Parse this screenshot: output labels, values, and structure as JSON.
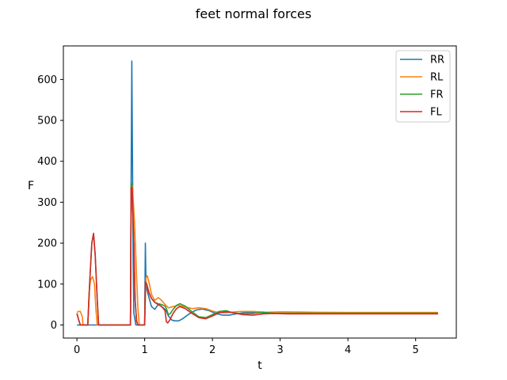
{
  "chart_data": {
    "type": "line",
    "title": "feet normal forces",
    "xlabel": "t",
    "ylabel": "F",
    "xlim": [
      -0.2,
      5.6
    ],
    "ylim": [
      -32,
      682
    ],
    "xticks": [
      0,
      1,
      2,
      3,
      4,
      5
    ],
    "yticks": [
      0,
      100,
      200,
      300,
      400,
      500,
      600
    ],
    "grid": false,
    "legend_position": "top-right",
    "series": [
      {
        "name": "RR",
        "color": "#1f77b4",
        "x": [
          0.0,
          0.05,
          0.09,
          0.16,
          0.79,
          0.8,
          0.81,
          0.82,
          0.83,
          0.84,
          0.87,
          1.0,
          1.01,
          1.02,
          1.03,
          1.05,
          1.1,
          1.15,
          1.2,
          1.25,
          1.3,
          1.32,
          1.35,
          1.4,
          1.45,
          1.5,
          1.55,
          1.65,
          1.75,
          1.85,
          1.95,
          2.05,
          2.15,
          2.25,
          2.35,
          2.5,
          2.7,
          2.9,
          3.2,
          3.6,
          4.0,
          4.5,
          5.0,
          5.33
        ],
        "y": [
          0,
          0,
          0,
          0,
          0,
          340,
          645,
          420,
          150,
          30,
          0,
          0,
          200,
          100,
          90,
          75,
          45,
          38,
          50,
          45,
          38,
          34,
          22,
          12,
          10,
          10,
          14,
          26,
          36,
          39,
          35,
          28,
          24,
          24,
          27,
          31,
          30,
          28,
          29,
          28.5,
          28.5,
          28.5,
          28.5,
          28.5
        ]
      },
      {
        "name": "RL",
        "color": "#ff7f0e",
        "x": [
          0.0,
          0.02,
          0.05,
          0.08,
          0.09,
          0.16,
          0.18,
          0.2,
          0.23,
          0.26,
          0.28,
          0.3,
          0.32,
          0.79,
          0.8,
          0.82,
          0.85,
          0.88,
          0.9,
          0.92,
          1.0,
          1.02,
          1.04,
          1.07,
          1.1,
          1.15,
          1.2,
          1.25,
          1.3,
          1.35,
          1.4,
          1.5,
          1.6,
          1.7,
          1.8,
          1.9,
          2.0,
          2.1,
          2.2,
          2.4,
          2.6,
          2.8,
          3.0,
          3.5,
          4.0,
          5.0,
          5.33
        ],
        "y": [
          30,
          33,
          33,
          20,
          0,
          0,
          80,
          110,
          118,
          100,
          40,
          0,
          0,
          0,
          300,
          340,
          250,
          120,
          40,
          0,
          0,
          115,
          120,
          100,
          75,
          60,
          67,
          60,
          50,
          42,
          44,
          48,
          44,
          40,
          42,
          40,
          34,
          30,
          30,
          33,
          33,
          31,
          32,
          31,
          30.5,
          30.5,
          30.5
        ]
      },
      {
        "name": "FR",
        "color": "#2ca02c",
        "x": [
          0.0,
          0.03,
          0.05,
          0.09,
          0.16,
          0.19,
          0.22,
          0.245,
          0.27,
          0.3,
          0.32,
          0.79,
          0.8,
          0.81,
          0.84,
          0.86,
          0.88,
          0.9,
          0.95,
          1.0,
          1.01,
          1.03,
          1.06,
          1.1,
          1.15,
          1.2,
          1.25,
          1.3,
          1.32,
          1.35,
          1.38,
          1.42,
          1.47,
          1.52,
          1.6,
          1.7,
          1.8,
          1.9,
          2.0,
          2.1,
          2.2,
          2.3,
          2.45,
          2.6,
          2.75,
          2.9,
          3.1,
          3.5,
          4.0,
          5.0,
          5.33
        ],
        "y": [
          28,
          10,
          0,
          0,
          0,
          110,
          200,
          222,
          170,
          60,
          0,
          0,
          345,
          345,
          200,
          60,
          10,
          0,
          0,
          0,
          105,
          100,
          80,
          65,
          55,
          52,
          50,
          46,
          40,
          25,
          28,
          38,
          48,
          52,
          46,
          32,
          20,
          18,
          25,
          33,
          35,
          30,
          27,
          28,
          31,
          29,
          28.5,
          28.5,
          28.5,
          28.5,
          28.5
        ]
      },
      {
        "name": "FL",
        "color": "#d62728",
        "x": [
          0.0,
          0.03,
          0.05,
          0.09,
          0.16,
          0.19,
          0.22,
          0.245,
          0.27,
          0.3,
          0.32,
          0.79,
          0.8,
          0.815,
          0.84,
          0.86,
          0.88,
          0.9,
          0.95,
          1.0,
          1.01,
          1.03,
          1.06,
          1.1,
          1.15,
          1.2,
          1.25,
          1.3,
          1.32,
          1.34,
          1.37,
          1.42,
          1.47,
          1.52,
          1.6,
          1.7,
          1.8,
          1.9,
          2.0,
          2.1,
          2.2,
          2.3,
          2.45,
          2.6,
          2.75,
          2.9,
          3.1,
          3.5,
          4.0,
          5.0,
          5.33
        ],
        "y": [
          28,
          10,
          0,
          0,
          0,
          110,
          200,
          224,
          170,
          60,
          0,
          0,
          335,
          335,
          200,
          60,
          10,
          0,
          0,
          0,
          105,
          100,
          80,
          65,
          55,
          50,
          45,
          35,
          8,
          5,
          12,
          28,
          40,
          45,
          40,
          28,
          18,
          15,
          22,
          30,
          32,
          30,
          25,
          24,
          27,
          28,
          27,
          27,
          27,
          27,
          27
        ]
      }
    ]
  }
}
